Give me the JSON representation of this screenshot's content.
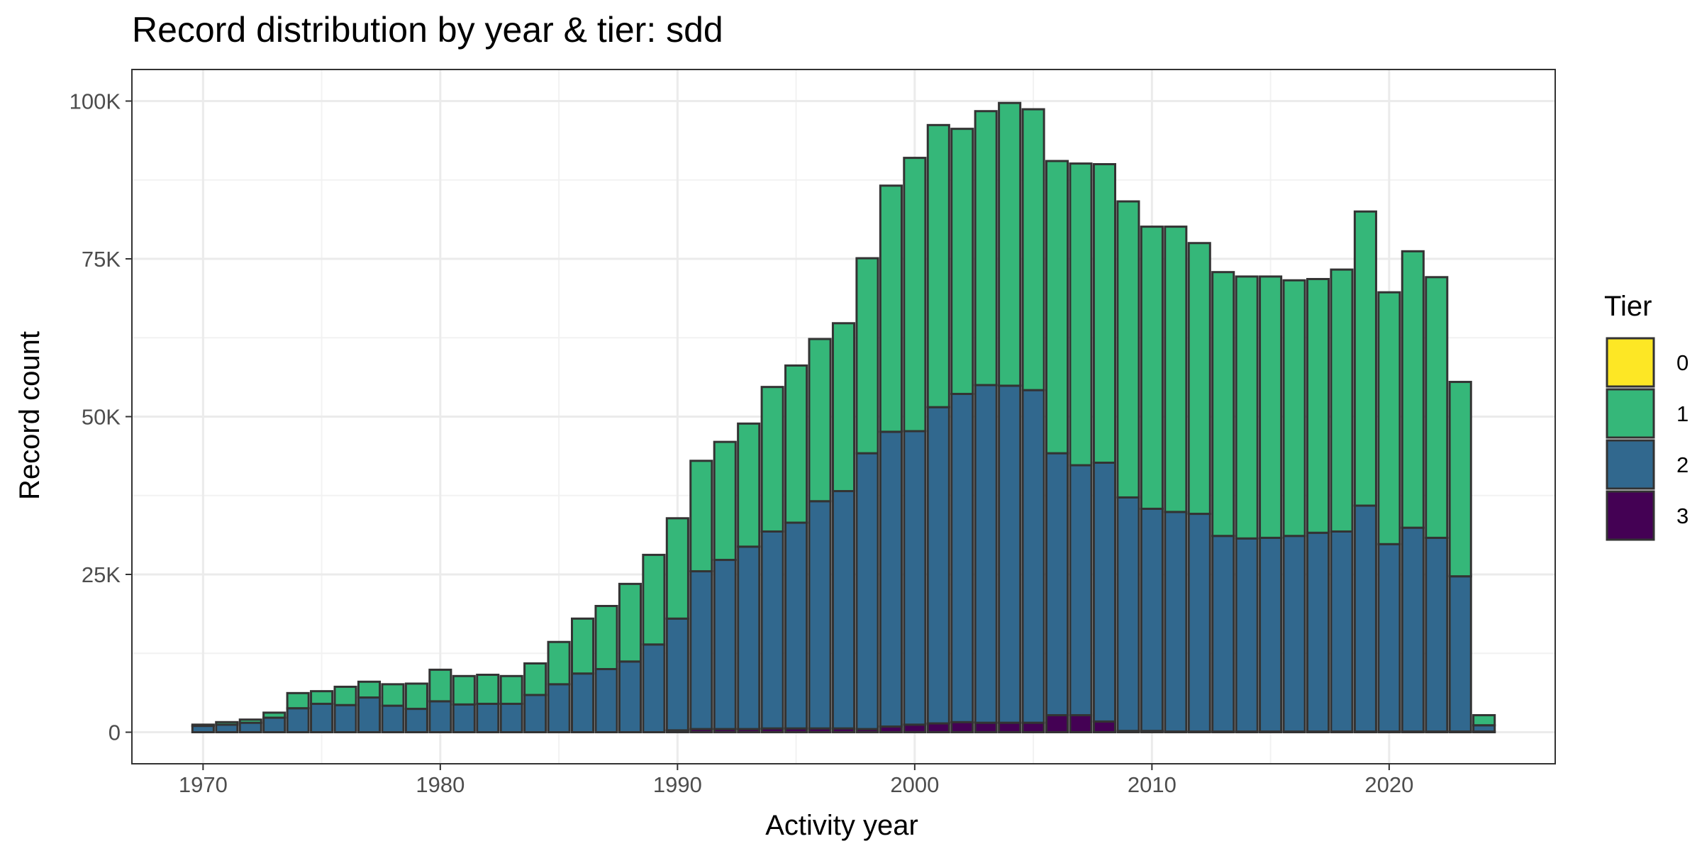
{
  "chart_data": {
    "type": "bar",
    "stacked": true,
    "title": "Record distribution by year & tier: sdd",
    "xlabel": "Activity year",
    "ylabel": "Record count",
    "xlim": [
      1967,
      2027
    ],
    "ylim": [
      -5000,
      105000
    ],
    "x_ticks": [
      1970,
      1980,
      1990,
      2000,
      2010,
      2020
    ],
    "y_ticks": [
      0,
      25000,
      50000,
      75000,
      100000
    ],
    "y_tick_labels": [
      "0",
      "25K",
      "50K",
      "75K",
      "100K"
    ],
    "grid": true,
    "legend": {
      "title": "Tier",
      "position": "right",
      "entries": [
        "0",
        "1",
        "2",
        "3"
      ]
    },
    "colors": {
      "0": "#fde725",
      "1": "#35b779",
      "2": "#31688e",
      "3": "#440154"
    },
    "years": [
      1970,
      1971,
      1972,
      1973,
      1974,
      1975,
      1976,
      1977,
      1978,
      1979,
      1980,
      1981,
      1982,
      1983,
      1984,
      1985,
      1986,
      1987,
      1988,
      1989,
      1990,
      1991,
      1992,
      1993,
      1994,
      1995,
      1996,
      1997,
      1998,
      1999,
      2000,
      2001,
      2002,
      2003,
      2004,
      2005,
      2006,
      2007,
      2008,
      2009,
      2010,
      2011,
      2012,
      2013,
      2014,
      2015,
      2016,
      2017,
      2018,
      2019,
      2020,
      2021,
      2022,
      2023,
      2024
    ],
    "series": [
      {
        "name": "0",
        "values": [
          0,
          0,
          0,
          0,
          0,
          0,
          0,
          0,
          0,
          0,
          0,
          0,
          0,
          0,
          0,
          0,
          0,
          0,
          0,
          0,
          0,
          0,
          0,
          0,
          0,
          0,
          0,
          0,
          0,
          0,
          0,
          0,
          0,
          0,
          0,
          0,
          0,
          0,
          0,
          0,
          0,
          0,
          0,
          0,
          0,
          0,
          0,
          0,
          0,
          0,
          0,
          0,
          0,
          0,
          0
        ]
      },
      {
        "name": "1",
        "values": [
          200,
          400,
          500,
          800,
          2400,
          2000,
          2900,
          2500,
          3400,
          4000,
          5000,
          4500,
          4600,
          4400,
          5000,
          6700,
          8700,
          10000,
          12300,
          14200,
          15900,
          17500,
          18700,
          19500,
          22900,
          24900,
          25700,
          26600,
          30900,
          39000,
          43300,
          44700,
          42000,
          43400,
          44800,
          44500,
          46300,
          47800,
          47300,
          46900,
          44700,
          45200,
          42900,
          41800,
          41500,
          41400,
          40500,
          40200,
          41500,
          46600,
          39900,
          43800,
          41300,
          30800,
          1600
        ]
      },
      {
        "name": "2",
        "values": [
          1000,
          1200,
          1500,
          2300,
          3800,
          4500,
          4300,
          5500,
          4200,
          3700,
          4900,
          4400,
          4500,
          4500,
          5900,
          7600,
          9300,
          10000,
          11200,
          13900,
          17700,
          25000,
          26800,
          28900,
          31200,
          32600,
          36000,
          37600,
          43700,
          46700,
          46500,
          50100,
          52000,
          53500,
          53400,
          52700,
          41500,
          39600,
          41000,
          37000,
          35200,
          34800,
          34500,
          31000,
          30600,
          30700,
          31000,
          31500,
          31700,
          35800,
          29700,
          32300,
          30700,
          24600,
          1000
        ]
      },
      {
        "name": "3",
        "values": [
          0,
          0,
          0,
          0,
          0,
          0,
          0,
          0,
          0,
          0,
          0,
          0,
          0,
          0,
          0,
          0,
          0,
          0,
          0,
          0,
          300,
          500,
          500,
          500,
          600,
          600,
          600,
          600,
          500,
          900,
          1200,
          1400,
          1600,
          1500,
          1500,
          1500,
          2700,
          2700,
          1700,
          200,
          200,
          100,
          100,
          100,
          100,
          100,
          100,
          100,
          100,
          100,
          100,
          100,
          100,
          100,
          100
        ]
      }
    ]
  }
}
